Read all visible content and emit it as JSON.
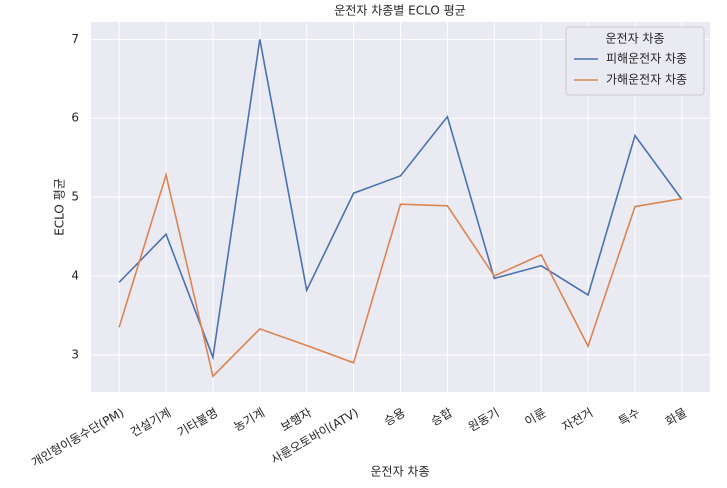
{
  "chart_data": {
    "type": "line",
    "title": "운전자 차종별 ECLO 평균",
    "x_label": "운전자 차종",
    "y_label": "ECLO 평균",
    "categories": [
      "개인형이동수단(PM)",
      "건설기계",
      "기타불명",
      "농기계",
      "보행자",
      "사륜오토바이(ATV)",
      "승용",
      "승합",
      "원동기",
      "이륜",
      "자전거",
      "특수",
      "화물"
    ],
    "series": [
      {
        "name": "피해운전자 차종",
        "color": "#4c72b0",
        "values": [
          3.92,
          4.53,
          2.97,
          7.0,
          3.82,
          5.05,
          5.27,
          6.02,
          3.97,
          4.13,
          3.76,
          5.78,
          4.97
        ]
      },
      {
        "name": "가해운전자 차종",
        "color": "#dd8452",
        "values": [
          3.35,
          5.28,
          2.73,
          3.33,
          3.12,
          2.9,
          4.91,
          4.89,
          4.0,
          4.27,
          3.11,
          4.88,
          4.98
        ]
      }
    ],
    "legend_title": "운전자 차종",
    "legend": "upper right",
    "ylim": [
      2.53,
      7.22
    ],
    "yticks": [
      3,
      4,
      5,
      6,
      7
    ],
    "grid": true
  }
}
